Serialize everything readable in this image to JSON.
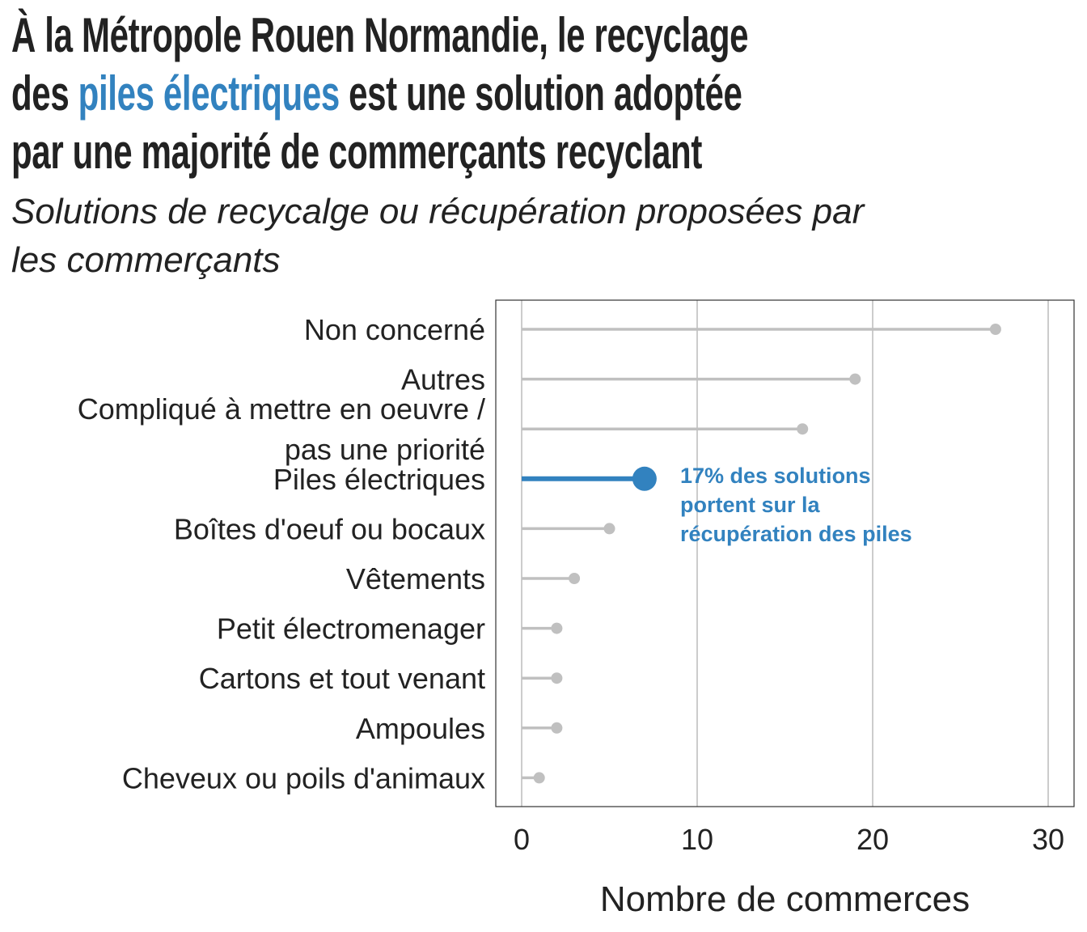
{
  "title": {
    "line1": "À la Métropole Rouen Normandie, le recyclage",
    "line2_before": "des ",
    "line2_highlight": "piles électriques",
    "line2_after": " est une solution adoptée",
    "line3": "par une majorité de commerçants recyclant"
  },
  "subtitle": {
    "line1": "Solutions de recycalge ou récupération proposées par",
    "line2": "les commerçants"
  },
  "colors": {
    "highlight": "#3282bf",
    "lollipop": "#c0c0c0",
    "grid": "#cccccc",
    "text": "#222222"
  },
  "chart_data": {
    "type": "lollipop",
    "orientation": "horizontal",
    "categories": [
      [
        "Non concerné"
      ],
      [
        "Autres"
      ],
      [
        "Compliqué à mettre en oeuvre /",
        "pas une priorité"
      ],
      [
        "Piles électriques"
      ],
      [
        "Boîtes d'oeuf ou bocaux"
      ],
      [
        "Vêtements"
      ],
      [
        "Petit électromenager"
      ],
      [
        "Cartons et tout venant"
      ],
      [
        "Ampoules"
      ],
      [
        "Cheveux ou poils d'animaux"
      ]
    ],
    "values": [
      27,
      19,
      16,
      7,
      5,
      3,
      2,
      2,
      2,
      1
    ],
    "highlight_index": 3,
    "xlabel": "Nombre de commerces",
    "xlim": [
      0,
      30
    ],
    "xticks": [
      "0",
      "10",
      "20",
      "30"
    ],
    "grid": "vertical",
    "annotation": {
      "lines": [
        "17% des solutions",
        "portent sur la",
        "récupération des piles"
      ]
    }
  }
}
